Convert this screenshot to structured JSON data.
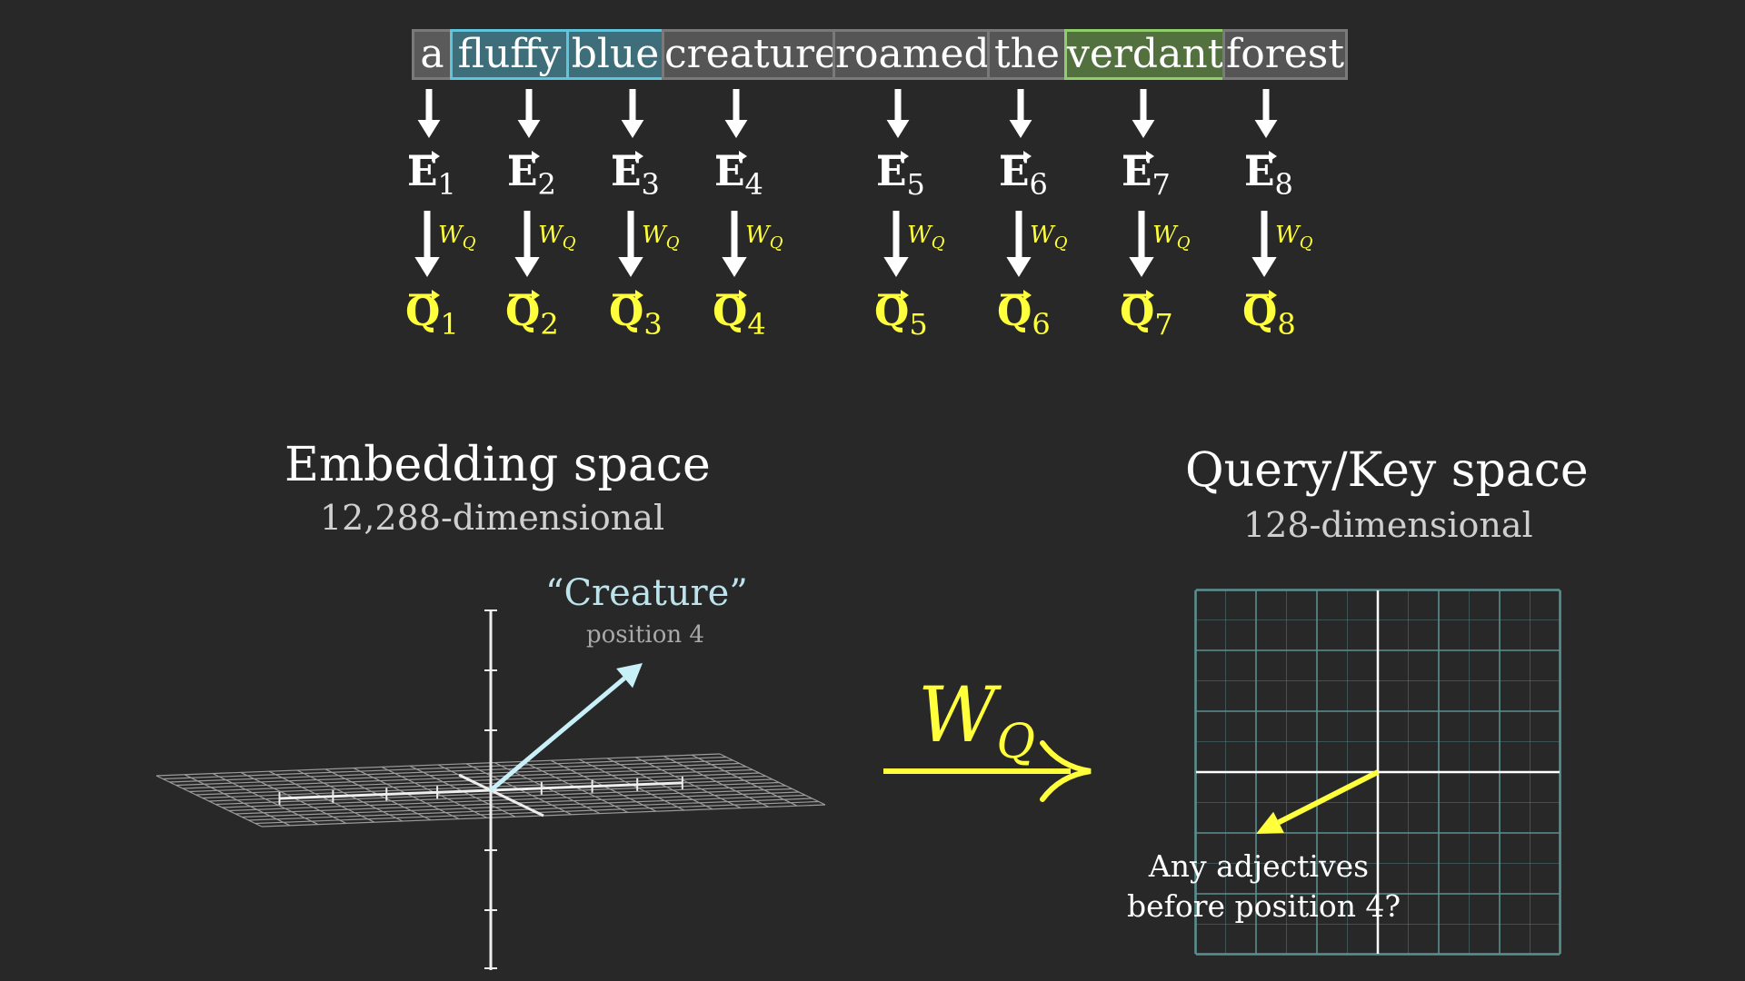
{
  "tokens": [
    {
      "text": "a",
      "bg": "#5a5a5a",
      "border": "#7a7a7a"
    },
    {
      "text": "fluffy",
      "bg": "#3e6e7a",
      "border": "#5fc4dc"
    },
    {
      "text": "blue",
      "bg": "#3e6e7a",
      "border": "#5fc4dc"
    },
    {
      "text": "creature",
      "bg": "#555555",
      "border": "#7a7a7a"
    },
    {
      "text": "roamed",
      "bg": "#555555",
      "border": "#7a7a7a"
    },
    {
      "text": "the",
      "bg": "#555555",
      "border": "#7a7a7a"
    },
    {
      "text": "verdant",
      "bg": "#52713f",
      "border": "#8fce6a"
    },
    {
      "text": "forest",
      "bg": "#555555",
      "border": "#7a7a7a"
    }
  ],
  "embeddings": [
    {
      "letter": "E",
      "index": "1"
    },
    {
      "letter": "E",
      "index": "2"
    },
    {
      "letter": "E",
      "index": "3"
    },
    {
      "letter": "E",
      "index": "4"
    },
    {
      "letter": "E",
      "index": "5"
    },
    {
      "letter": "E",
      "index": "6"
    },
    {
      "letter": "E",
      "index": "7"
    },
    {
      "letter": "E",
      "index": "8"
    }
  ],
  "queries": [
    {
      "letter": "Q",
      "index": "1"
    },
    {
      "letter": "Q",
      "index": "2"
    },
    {
      "letter": "Q",
      "index": "3"
    },
    {
      "letter": "Q",
      "index": "4"
    },
    {
      "letter": "Q",
      "index": "5"
    },
    {
      "letter": "Q",
      "index": "6"
    },
    {
      "letter": "Q",
      "index": "7"
    },
    {
      "letter": "Q",
      "index": "8"
    }
  ],
  "transform_label": {
    "main": "W",
    "sub": "Q"
  },
  "embedding_space": {
    "title": "Embedding space",
    "subtitle": "12,288-dimensional"
  },
  "query_key_space": {
    "title": "Query/Key space",
    "subtitle": "128-dimensional"
  },
  "creature_label": {
    "word": "“Creature”",
    "position": "position 4"
  },
  "query_annotation": {
    "line1": "Any adjectives",
    "line2": "before position 4?"
  },
  "colors": {
    "query": "#ffff3c",
    "creature_vector": "#c8f0f8",
    "grid": "#5a8f8f"
  }
}
